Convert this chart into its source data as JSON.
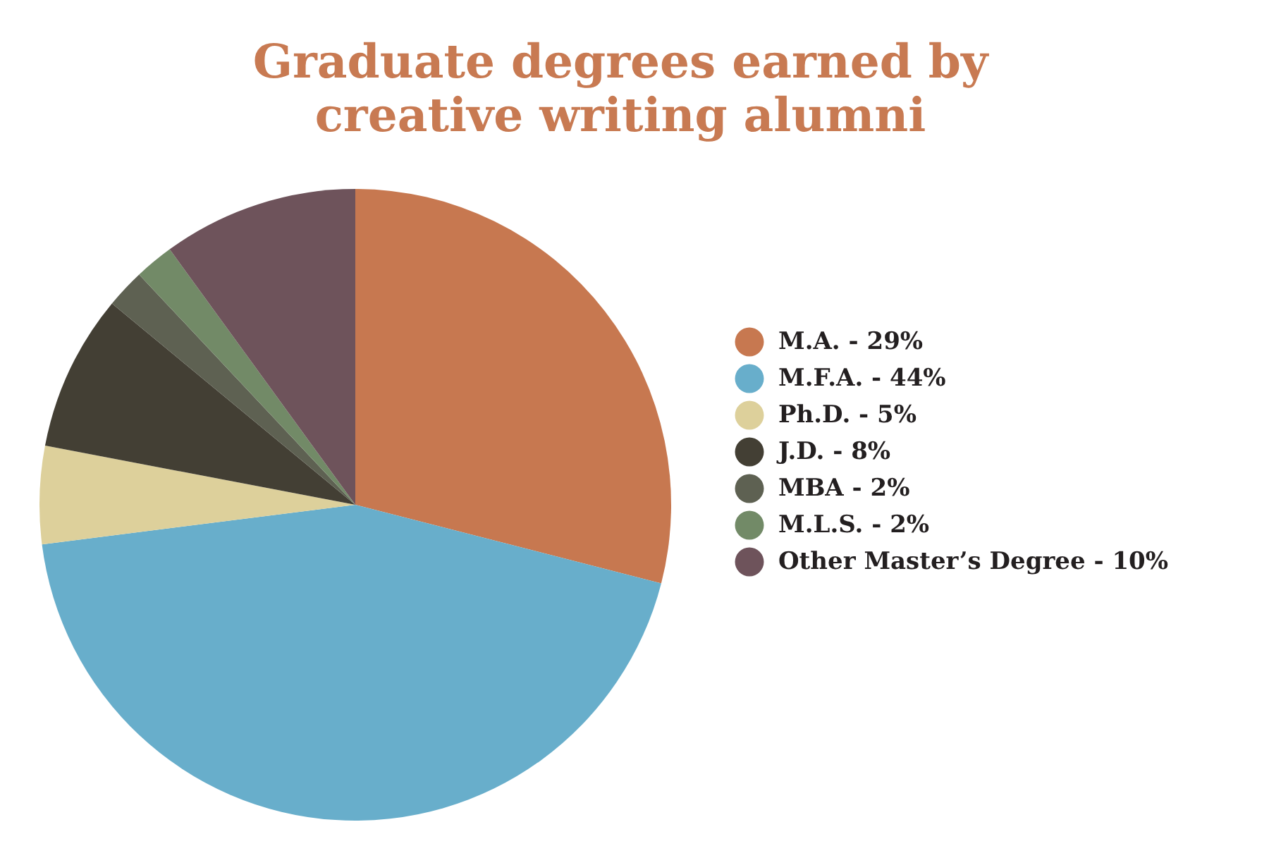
{
  "chart_data": {
    "type": "pie",
    "title": "Graduate degrees earned by creative writing alumni",
    "categories": [
      "M.A. - 29%",
      "M.F.A. - 44%",
      "Ph.D. - 5%",
      "J.D. - 8%",
      "MBA - 2%",
      "M.L.S. - 2%",
      "Other Master’s Degree - 10%"
    ],
    "values": [
      29,
      44,
      5,
      8,
      2,
      2,
      10
    ],
    "colors": [
      "#c77850",
      "#68aecb",
      "#ddd09b",
      "#433f34",
      "#5e6152",
      "#728a67",
      "#6e535b"
    ],
    "legend": "right"
  }
}
